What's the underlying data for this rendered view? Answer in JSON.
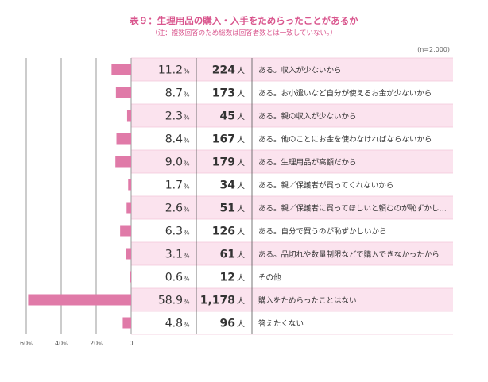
{
  "title": "表９：生理用品の購入・入手をためらったことがあるか",
  "note": "（注：複数回答のため総数は回答者数とは一致していない。）",
  "n_label": "(n=2,000)",
  "colors": {
    "bar": "#e07aa8",
    "row_odd": "#fbe3ee",
    "row_even": "#ffffff",
    "title": "#d9558d",
    "grid": "#999999"
  },
  "chart_data": {
    "type": "bar",
    "orientation": "horizontal",
    "title": "表９：生理用品の購入・入手をためらったことがあるか",
    "xlim": [
      0,
      60
    ],
    "x_direction": "right-to-left",
    "ticks": [
      {
        "value": 60,
        "label": "60",
        "unit": "%"
      },
      {
        "value": 40,
        "label": "40",
        "unit": "%"
      },
      {
        "value": 20,
        "label": "20",
        "unit": "%"
      },
      {
        "value": 0,
        "label": "0",
        "unit": ""
      }
    ],
    "pct_unit": "%",
    "count_unit": "人",
    "rows": [
      {
        "label": "ある。収入が少ないから",
        "value": 11.2,
        "value_text": "11.2",
        "count": "224"
      },
      {
        "label": "ある。お小遣いなど自分が使えるお金が少ないから",
        "value": 8.7,
        "value_text": "8.7",
        "count": "173"
      },
      {
        "label": "ある。親の収入が少ないから",
        "value": 2.3,
        "value_text": "2.3",
        "count": "45"
      },
      {
        "label": "ある。他のことにお金を使わなければならないから",
        "value": 8.4,
        "value_text": "8.4",
        "count": "167"
      },
      {
        "label": "ある。生理用品が高額だから",
        "value": 9.0,
        "value_text": "9.0",
        "count": "179"
      },
      {
        "label": "ある。親／保護者が買ってくれないから",
        "value": 1.7,
        "value_text": "1.7",
        "count": "34"
      },
      {
        "label": "ある。親／保護者に買ってほしいと頼むのが恥ずかし…",
        "value": 2.6,
        "value_text": "2.6",
        "count": "51"
      },
      {
        "label": "ある。自分で買うのが恥ずかしいから",
        "value": 6.3,
        "value_text": "6.3",
        "count": "126"
      },
      {
        "label": "ある。品切れや数量制限などで購入できなかったから",
        "value": 3.1,
        "value_text": "3.1",
        "count": "61"
      },
      {
        "label": "その他",
        "value": 0.6,
        "value_text": "0.6",
        "count": "12"
      },
      {
        "label": "購入をためらったことはない",
        "value": 58.9,
        "value_text": "58.9",
        "count": "1,178"
      },
      {
        "label": "答えたくない",
        "value": 4.8,
        "value_text": "4.8",
        "count": "96"
      }
    ]
  }
}
